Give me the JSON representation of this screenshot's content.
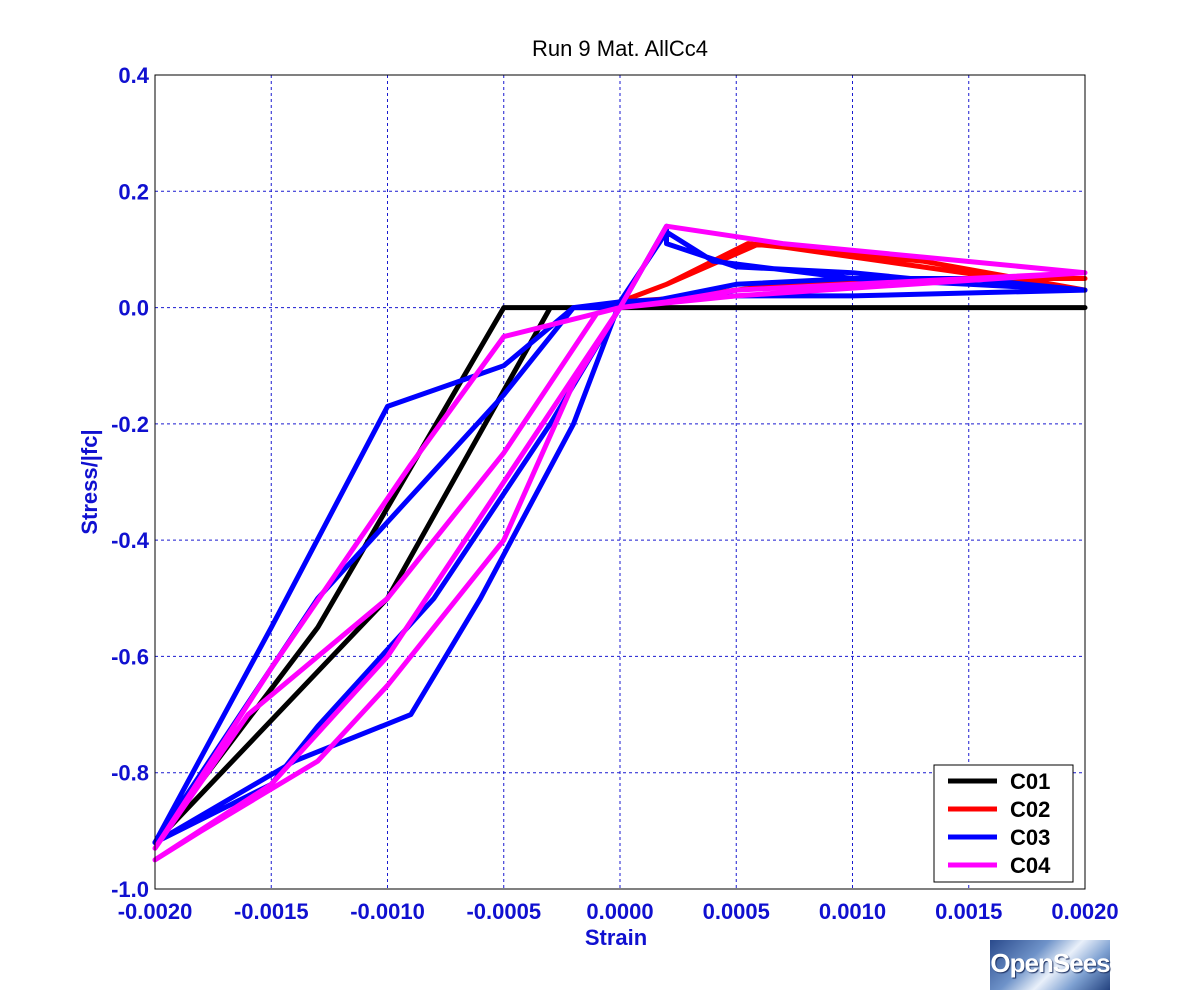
{
  "chart_data": {
    "type": "line",
    "title": "Run 9   Mat. AllCc4",
    "xlabel": "Strain",
    "ylabel": "Stress/|fc|",
    "xlim": [
      -0.002,
      0.002
    ],
    "ylim": [
      -1.0,
      0.4
    ],
    "xticks": [
      -0.002,
      -0.0015,
      -0.001,
      -0.0005,
      0.0,
      0.0005,
      0.001,
      0.0015,
      0.002
    ],
    "xtick_labels": [
      "-0.0020",
      "-0.0015",
      "-0.0010",
      "-0.0005",
      "0.0000",
      "0.0005",
      "0.0010",
      "0.0015",
      "0.0020"
    ],
    "yticks": [
      -1.0,
      -0.8,
      -0.6,
      -0.4,
      -0.2,
      0.0,
      0.2,
      0.4
    ],
    "ytick_labels": [
      "-1.0",
      "-0.8",
      "-0.6",
      "-0.4",
      "-0.2",
      "0.0",
      "0.2",
      "0.4"
    ],
    "grid": true,
    "legend_position": "bottom-right",
    "series": [
      {
        "name": "C01",
        "color": "#000000",
        "x": [
          0.002,
          0.0005,
          0.0,
          -0.0003,
          -0.001,
          -0.002,
          -0.0013,
          -0.0005,
          -0.0001,
          0.0
        ],
        "y": [
          0.0,
          0.0,
          0.0,
          0.0,
          -0.5,
          -0.92,
          -0.55,
          0.0,
          0.0,
          0.0
        ]
      },
      {
        "name": "C02",
        "color": "#ff0000",
        "x": [
          -0.0001,
          0.0,
          0.0002,
          0.00055,
          0.0013,
          0.002,
          0.0013,
          0.0006,
          0.0002,
          0.0,
          0.0002,
          0.0007,
          0.0015,
          0.002
        ],
        "y": [
          0.0,
          0.01,
          0.04,
          0.11,
          0.08,
          0.03,
          0.07,
          0.11,
          0.04,
          0.01,
          0.015,
          0.04,
          0.05,
          0.05
        ]
      },
      {
        "name": "C03",
        "color": "#0000ff",
        "x": [
          0.002,
          0.0015,
          0.001,
          0.0004,
          0.0002,
          0.0,
          -0.0002,
          -0.0006,
          -0.0009,
          -0.0014,
          -0.002,
          -0.0015,
          -0.0013,
          -0.0008,
          -0.0003,
          0.0,
          0.0005,
          0.001,
          0.0015,
          0.002,
          0.0015,
          0.001,
          0.0005,
          0.0002,
          0.0002,
          0.0,
          -0.0002,
          -0.0005,
          -0.001,
          -0.0015,
          -0.002,
          -0.0013,
          -0.0005,
          -0.0002,
          0.0,
          0.0005,
          0.001,
          0.002
        ],
        "y": [
          0.03,
          0.04,
          0.05,
          0.08,
          0.13,
          0.01,
          -0.2,
          -0.5,
          -0.7,
          -0.78,
          -0.92,
          -0.82,
          -0.72,
          -0.5,
          -0.2,
          0.0,
          0.04,
          0.05,
          0.05,
          0.03,
          0.04,
          0.06,
          0.07,
          0.11,
          0.14,
          0.0,
          0.0,
          -0.1,
          -0.17,
          -0.55,
          -0.92,
          -0.5,
          -0.15,
          0.0,
          0.01,
          0.02,
          0.02,
          0.03
        ]
      },
      {
        "name": "C04",
        "color": "#ff00ff",
        "x": [
          0.002,
          0.0007,
          0.0002,
          0.0,
          -0.0005,
          -0.0009,
          -0.0015,
          -0.002,
          -0.0016,
          -0.001,
          -0.0005,
          -0.0001,
          0.0,
          0.0002,
          0.0005,
          0.001,
          0.0015,
          0.002,
          0.0005,
          0.0,
          -0.0002,
          -0.0005,
          -0.001,
          -0.0013,
          -0.0018,
          -0.002,
          -0.0015,
          -0.001,
          -0.0005,
          -0.0002,
          0.0,
          0.0002
        ],
        "y": [
          0.06,
          0.11,
          0.14,
          0.0,
          -0.05,
          -0.27,
          -0.62,
          -0.93,
          -0.7,
          -0.5,
          -0.25,
          -0.01,
          0.0,
          0.01,
          0.03,
          0.04,
          0.05,
          0.06,
          0.02,
          0.0,
          -0.13,
          -0.4,
          -0.65,
          -0.78,
          -0.9,
          -0.95,
          -0.82,
          -0.6,
          -0.3,
          -0.12,
          0.0,
          0.14
        ]
      }
    ]
  },
  "logo": {
    "text": "OpenSees"
  }
}
